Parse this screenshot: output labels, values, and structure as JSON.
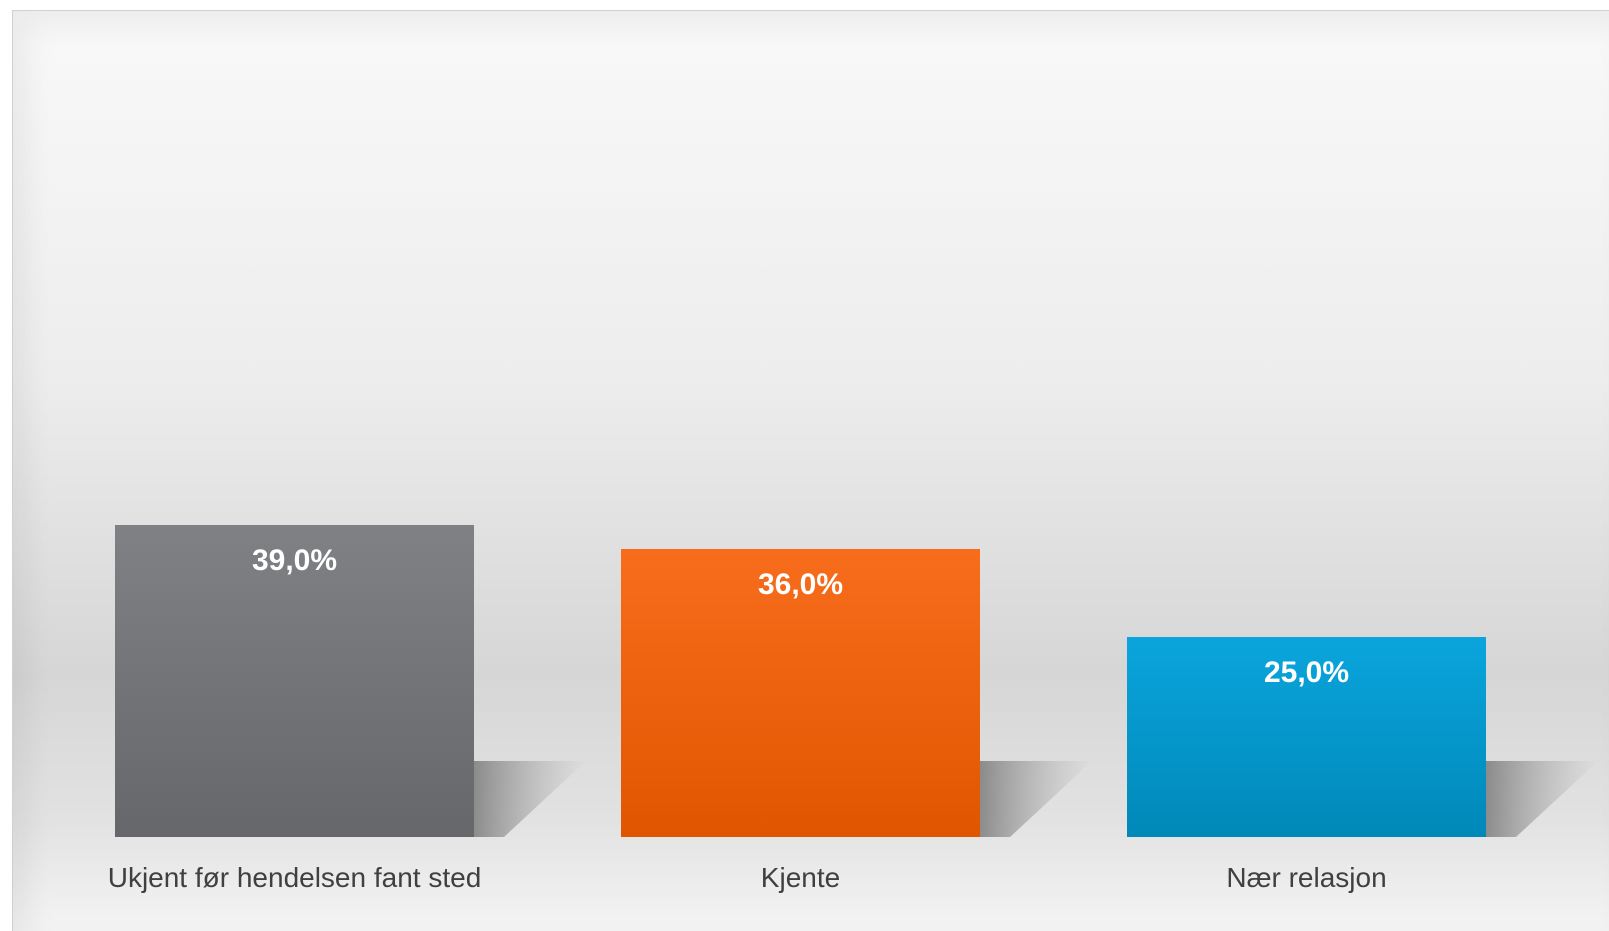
{
  "chart_data": {
    "type": "bar",
    "title": "",
    "xlabel": "",
    "ylabel": "",
    "ylim": [
      0,
      100
    ],
    "grid": false,
    "legend": "none",
    "categories": [
      "Ukjent før hendelsen fant sted",
      "Kjente",
      "Nær relasjon"
    ],
    "values": [
      39.0,
      36.0,
      25.0
    ],
    "value_labels": [
      "39,0%",
      "36,0%",
      "25,0%"
    ],
    "colors": [
      "#75767a",
      "#f26b1d",
      "#0a9ed6"
    ]
  }
}
